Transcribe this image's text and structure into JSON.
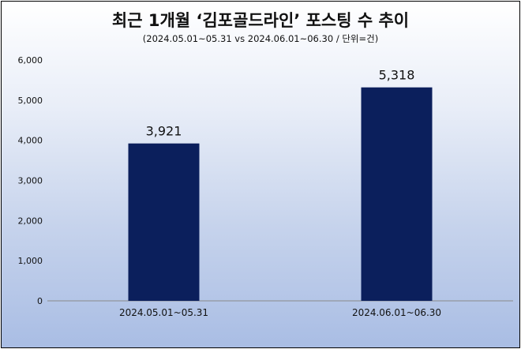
{
  "chart_data": {
    "type": "bar",
    "title": "최근 1개월 ‘김포골드라인’ 포스팅 수 추이",
    "subtitle": "(2024.05.01~05.31  vs  2024.06.01~06.30  /  단위=건)",
    "categories": [
      "2024.05.01~05.31",
      "2024.06.01~06.30"
    ],
    "values": [
      3921,
      5318
    ],
    "data_labels": [
      "3,921",
      "5,318"
    ],
    "ylim": [
      0,
      6000
    ],
    "yticks": [
      0,
      1000,
      2000,
      3000,
      4000,
      5000,
      6000
    ],
    "ytick_labels": [
      "0",
      "1,000",
      "2,000",
      "3,000",
      "4,000",
      "5,000",
      "6,000"
    ],
    "xlabel": "",
    "ylabel": "",
    "grid": false,
    "legend": "none",
    "bar_color": "#0b1f5c"
  }
}
